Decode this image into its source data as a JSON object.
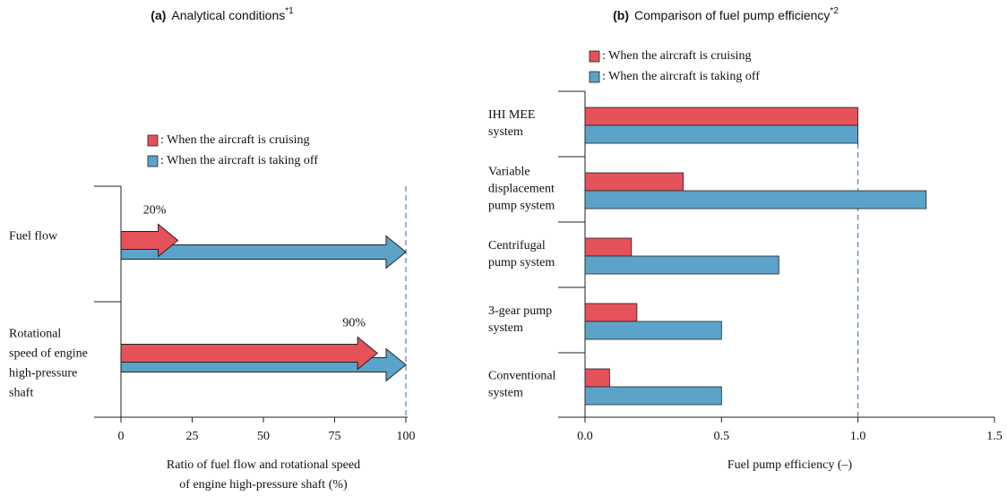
{
  "chart_data": [
    {
      "type": "arrow",
      "title_tag": "(a)",
      "title": "Analytical conditions",
      "title_note": "*1",
      "categories": [
        [
          "Fuel flow"
        ],
        [
          "Rotational",
          "speed of engine",
          "high-pressure",
          "shaft"
        ]
      ],
      "series": [
        {
          "name": ": When the aircraft is taking off",
          "color": "#5ba3c9",
          "values": [
            100,
            100
          ]
        },
        {
          "name": ": When the aircraft is cruising",
          "color": "#e5525a",
          "values": [
            20,
            90
          ],
          "value_labels": [
            "20%",
            "90%"
          ]
        }
      ],
      "xlim": [
        0,
        100
      ],
      "xticks": [
        0,
        25,
        50,
        75,
        100
      ],
      "refline": 100,
      "xlabel": [
        "Ratio of fuel flow and rotational speed",
        "of engine high-pressure shaft  (%)"
      ]
    },
    {
      "type": "bar",
      "title_tag": "(b)",
      "title": "Comparison of fuel pump efficiency",
      "title_note": "*2",
      "categories": [
        [
          "IHI MEE",
          "system"
        ],
        [
          "Variable",
          "displacement",
          "pump system"
        ],
        [
          "Centrifugal",
          "pump system"
        ],
        [
          "3-gear pump",
          "system"
        ],
        [
          "Conventional",
          "system"
        ]
      ],
      "series": [
        {
          "name": ": When the aircraft is cruising",
          "color": "#e5525a",
          "values": [
            1.0,
            0.36,
            0.17,
            0.19,
            0.09
          ]
        },
        {
          "name": ": When the aircraft is taking off",
          "color": "#5ba3c9",
          "values": [
            1.0,
            1.25,
            0.71,
            0.5,
            0.5
          ]
        }
      ],
      "xlim": [
        0,
        1.5
      ],
      "xticks": [
        {
          "value": 0,
          "label": "0.0"
        },
        0.5,
        {
          "value": 1,
          "label": "1.0"
        },
        1.5
      ],
      "refline": 1.0,
      "xlabel": [
        "Fuel pump efficiency (–)"
      ]
    }
  ]
}
